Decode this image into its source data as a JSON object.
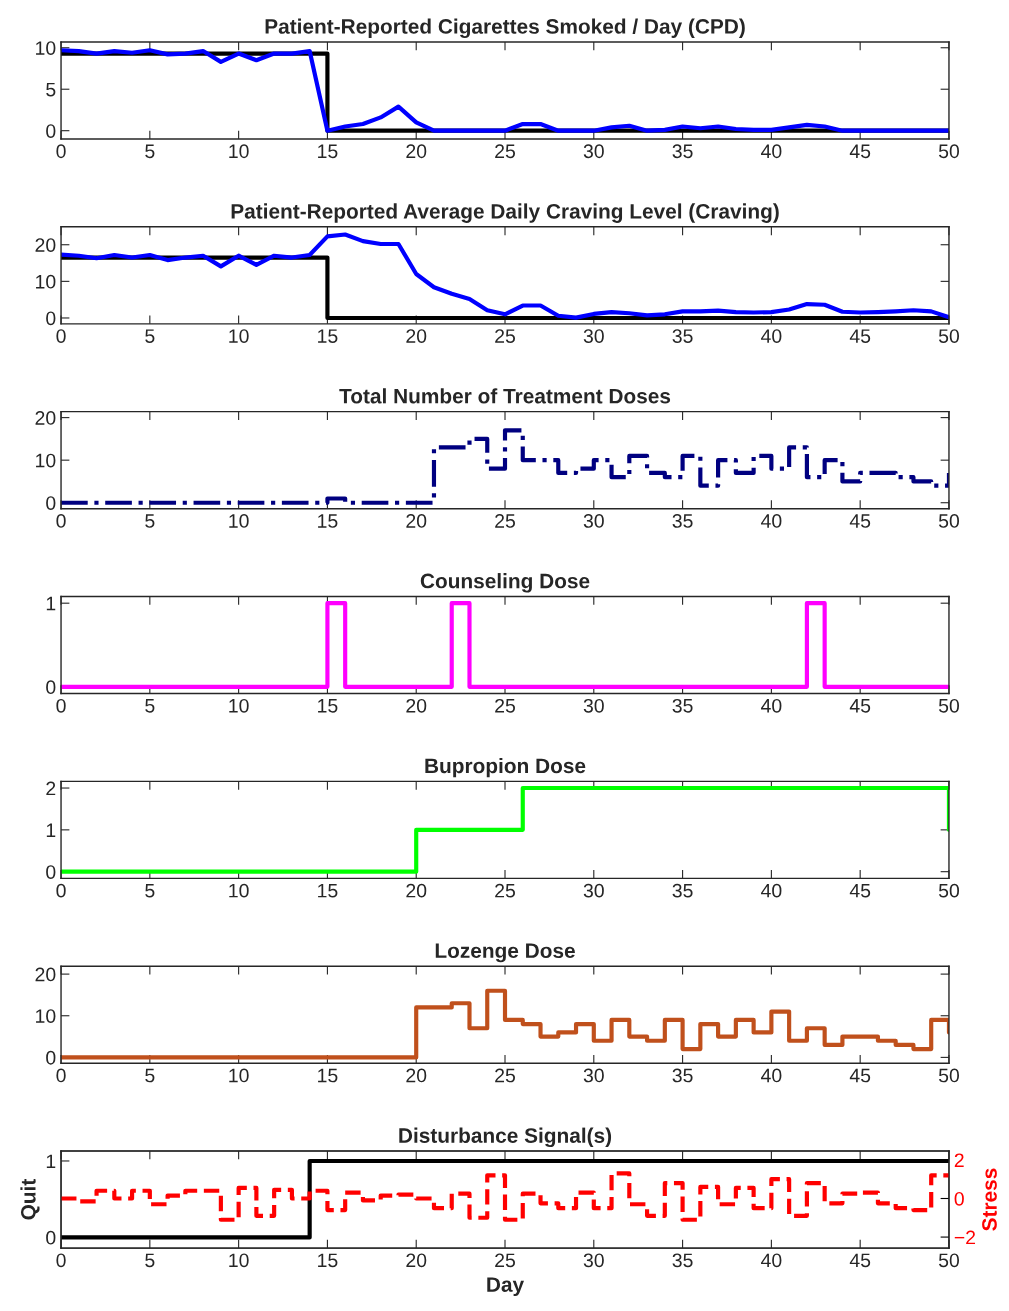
{
  "chart_data": [
    {
      "type": "line",
      "title": "Patient-Reported Cigarettes Smoked / Day (CPD)",
      "x": [
        0,
        1,
        2,
        3,
        4,
        5,
        6,
        7,
        8,
        9,
        10,
        11,
        12,
        13,
        14,
        15,
        16,
        17,
        18,
        19,
        20,
        21,
        22,
        23,
        24,
        25,
        26,
        27,
        28,
        29,
        30,
        31,
        32,
        33,
        34,
        35,
        36,
        37,
        38,
        39,
        40,
        41,
        42,
        43,
        44,
        45,
        46,
        47,
        48,
        49,
        50
      ],
      "xlim": [
        0,
        50
      ],
      "xticks": [
        0,
        5,
        10,
        15,
        20,
        25,
        30,
        35,
        40,
        45,
        50
      ],
      "ylim": [
        -1,
        10.7
      ],
      "yticks": [
        0,
        5,
        10
      ],
      "series": [
        {
          "type": "step",
          "color": "#000000",
          "x": [
            0,
            15,
            50
          ],
          "values": [
            9.3,
            0,
            0
          ]
        },
        {
          "color": "#0000ff",
          "values": [
            9.7,
            9.6,
            9.3,
            9.6,
            9.4,
            9.7,
            9.2,
            9.3,
            9.6,
            8.3,
            9.3,
            8.5,
            9.3,
            9.3,
            9.6,
            0,
            0.5,
            0.8,
            1.6,
            2.9,
            1.0,
            0,
            0,
            0,
            0,
            0,
            0.8,
            0.8,
            0,
            0,
            0,
            0.4,
            0.6,
            0,
            0.1,
            0.5,
            0.3,
            0.5,
            0.2,
            0.1,
            0.1,
            0.4,
            0.7,
            0.5,
            0,
            0,
            0,
            0,
            0,
            0,
            0
          ]
        }
      ]
    },
    {
      "type": "line",
      "title": "Patient-Reported Average Daily Craving Level (Craving)",
      "x": [
        0,
        1,
        2,
        3,
        4,
        5,
        6,
        7,
        8,
        9,
        10,
        11,
        12,
        13,
        14,
        15,
        16,
        17,
        18,
        19,
        20,
        21,
        22,
        23,
        24,
        25,
        26,
        27,
        28,
        29,
        30,
        31,
        32,
        33,
        34,
        35,
        36,
        37,
        38,
        39,
        40,
        41,
        42,
        43,
        44,
        45,
        46,
        47,
        48,
        49,
        50
      ],
      "xlim": [
        0,
        50
      ],
      "xticks": [
        0,
        5,
        10,
        15,
        20,
        25,
        30,
        35,
        40,
        45,
        50
      ],
      "ylim": [
        -1.6,
        24.9
      ],
      "yticks": [
        0,
        10,
        20
      ],
      "series": [
        {
          "type": "step",
          "color": "#000000",
          "x": [
            0,
            15,
            50
          ],
          "values": [
            16.5,
            0,
            0
          ]
        },
        {
          "color": "#0000ff",
          "values": [
            17.3,
            17,
            16.3,
            17.2,
            16.5,
            17.2,
            15.8,
            16.5,
            17,
            14.1,
            17,
            14.5,
            17,
            16.5,
            17.2,
            22.3,
            22.8,
            21,
            20.2,
            20.2,
            12,
            8.4,
            6.6,
            5.2,
            2.1,
            1,
            3.4,
            3.4,
            0.6,
            0.1,
            1.1,
            1.6,
            1.3,
            0.7,
            1,
            1.8,
            1.8,
            2,
            1.6,
            1.5,
            1.6,
            2.3,
            3.8,
            3.6,
            1.7,
            1.5,
            1.6,
            1.8,
            2.1,
            1.8,
            0.2
          ]
        }
      ]
    },
    {
      "type": "step",
      "title": "Total Number of Treatment Doses",
      "x": [
        0,
        1,
        2,
        3,
        4,
        5,
        6,
        7,
        8,
        9,
        10,
        11,
        12,
        13,
        14,
        15,
        16,
        17,
        18,
        19,
        20,
        21,
        22,
        23,
        24,
        25,
        26,
        27,
        28,
        29,
        30,
        31,
        32,
        33,
        34,
        35,
        36,
        37,
        38,
        39,
        40,
        41,
        42,
        43,
        44,
        45,
        46,
        47,
        48,
        49,
        50
      ],
      "xlim": [
        0,
        50
      ],
      "xticks": [
        0,
        5,
        10,
        15,
        20,
        25,
        30,
        35,
        40,
        45,
        50
      ],
      "ylim": [
        -1.4,
        21.4
      ],
      "yticks": [
        0,
        10,
        20
      ],
      "series": [
        {
          "color": "#000080",
          "line_style": "dashdot",
          "values": [
            0,
            0,
            0,
            0,
            0,
            0,
            0,
            0,
            0,
            0,
            0,
            0,
            0,
            0,
            0,
            1,
            0,
            0,
            0,
            0,
            0,
            13,
            13,
            15,
            8,
            17,
            10,
            10,
            7,
            8,
            10,
            6,
            11,
            7,
            6,
            11,
            4,
            10,
            7,
            11,
            8,
            13,
            6,
            10,
            5,
            7,
            7,
            6,
            5,
            4,
            7
          ]
        }
      ]
    },
    {
      "type": "step",
      "title": "Counseling Dose",
      "x": [
        0,
        1,
        2,
        3,
        4,
        5,
        6,
        7,
        8,
        9,
        10,
        11,
        12,
        13,
        14,
        15,
        16,
        17,
        18,
        19,
        20,
        21,
        22,
        23,
        24,
        25,
        26,
        27,
        28,
        29,
        30,
        31,
        32,
        33,
        34,
        35,
        36,
        37,
        38,
        39,
        40,
        41,
        42,
        43,
        44,
        45,
        46,
        47,
        48,
        49,
        50
      ],
      "xlim": [
        0,
        50
      ],
      "xticks": [
        0,
        5,
        10,
        15,
        20,
        25,
        30,
        35,
        40,
        45,
        50
      ],
      "ylim": [
        -0.08,
        1.08
      ],
      "yticks": [
        0,
        1
      ],
      "series": [
        {
          "color": "#ff00ff",
          "values": [
            0,
            0,
            0,
            0,
            0,
            0,
            0,
            0,
            0,
            0,
            0,
            0,
            0,
            0,
            0,
            1,
            0,
            0,
            0,
            0,
            0,
            0,
            1,
            0,
            0,
            0,
            0,
            0,
            0,
            0,
            0,
            0,
            0,
            0,
            0,
            0,
            0,
            0,
            0,
            0,
            0,
            0,
            1,
            0,
            0,
            0,
            0,
            0,
            0,
            0,
            0
          ]
        }
      ]
    },
    {
      "type": "step",
      "title": "Bupropion Dose",
      "x": [
        0,
        1,
        2,
        3,
        4,
        5,
        6,
        7,
        8,
        9,
        10,
        11,
        12,
        13,
        14,
        15,
        16,
        17,
        18,
        19,
        20,
        21,
        22,
        23,
        24,
        25,
        26,
        27,
        28,
        29,
        30,
        31,
        32,
        33,
        34,
        35,
        36,
        37,
        38,
        39,
        40,
        41,
        42,
        43,
        44,
        45,
        46,
        47,
        48,
        49,
        50
      ],
      "xlim": [
        0,
        50
      ],
      "xticks": [
        0,
        5,
        10,
        15,
        20,
        25,
        30,
        35,
        40,
        45,
        50
      ],
      "ylim": [
        -0.16,
        2.16
      ],
      "yticks": [
        0,
        1,
        2
      ],
      "series": [
        {
          "color": "#00ff00",
          "values": [
            0,
            0,
            0,
            0,
            0,
            0,
            0,
            0,
            0,
            0,
            0,
            0,
            0,
            0,
            0,
            0,
            0,
            0,
            0,
            0,
            1,
            1,
            1,
            1,
            1,
            1,
            2,
            2,
            2,
            2,
            2,
            2,
            2,
            2,
            2,
            2,
            2,
            2,
            2,
            2,
            2,
            2,
            2,
            2,
            2,
            2,
            2,
            2,
            2,
            2,
            1
          ]
        }
      ]
    },
    {
      "type": "step",
      "title": "Lozenge Dose",
      "x": [
        0,
        1,
        2,
        3,
        4,
        5,
        6,
        7,
        8,
        9,
        10,
        11,
        12,
        13,
        14,
        15,
        16,
        17,
        18,
        19,
        20,
        21,
        22,
        23,
        24,
        25,
        26,
        27,
        28,
        29,
        30,
        31,
        32,
        33,
        34,
        35,
        36,
        37,
        38,
        39,
        40,
        41,
        42,
        43,
        44,
        45,
        46,
        47,
        48,
        49,
        50
      ],
      "xlim": [
        0,
        50
      ],
      "xticks": [
        0,
        5,
        10,
        15,
        20,
        25,
        30,
        35,
        40,
        45,
        50
      ],
      "ylim": [
        -1.4,
        21.9
      ],
      "yticks": [
        0,
        10,
        20
      ],
      "series": [
        {
          "color": "#c0501c",
          "values": [
            0,
            0,
            0,
            0,
            0,
            0,
            0,
            0,
            0,
            0,
            0,
            0,
            0,
            0,
            0,
            0,
            0,
            0,
            0,
            0,
            12,
            12,
            13,
            7,
            16,
            9,
            8,
            5,
            6,
            8,
            4,
            9,
            5,
            4,
            9,
            2,
            8,
            5,
            9,
            6,
            11,
            4,
            7,
            3,
            5,
            5,
            4,
            3,
            2,
            9,
            6
          ]
        }
      ]
    },
    {
      "type": "step",
      "title": "Disturbance Signal(s)",
      "xlabel": "Day",
      "ylabel": "Quit",
      "y2label": "Stress",
      "x": [
        0,
        1,
        2,
        3,
        4,
        5,
        6,
        7,
        8,
        9,
        10,
        11,
        12,
        13,
        14,
        15,
        16,
        17,
        18,
        19,
        20,
        21,
        22,
        23,
        24,
        25,
        26,
        27,
        28,
        29,
        30,
        31,
        32,
        33,
        34,
        35,
        36,
        37,
        38,
        39,
        40,
        41,
        42,
        43,
        44,
        45,
        46,
        47,
        48,
        49,
        50
      ],
      "xlim": [
        0,
        50
      ],
      "xticks": [
        0,
        5,
        10,
        15,
        20,
        25,
        30,
        35,
        40,
        45,
        50
      ],
      "ylim": [
        -0.14,
        1.13
      ],
      "yticks": [
        0,
        1
      ],
      "y2lim": [
        -2.57,
        2.46
      ],
      "y2ticks": [
        {
          "value": -2,
          "label": "−2"
        },
        0,
        2
      ],
      "series": [
        {
          "color": "#000000",
          "values": [
            0,
            0,
            0,
            0,
            0,
            0,
            0,
            0,
            0,
            0,
            0,
            0,
            0,
            0,
            1,
            1,
            1,
            1,
            1,
            1,
            1,
            1,
            1,
            1,
            1,
            1,
            1,
            1,
            1,
            1,
            1,
            1,
            1,
            1,
            1,
            1,
            1,
            1,
            1,
            1,
            1,
            1,
            1,
            1,
            1,
            1,
            1,
            1,
            1,
            1,
            1
          ]
        },
        {
          "color": "#ff0000",
          "axis": "y2",
          "line_style": "dashed",
          "values": [
            0,
            -0.15,
            0.4,
            0,
            0.4,
            -0.3,
            0.15,
            0.4,
            0.4,
            -1.1,
            0.55,
            -0.9,
            0.45,
            0,
            0.4,
            -0.6,
            0.3,
            -0.1,
            0.15,
            0.2,
            0,
            -0.5,
            0.25,
            -1.0,
            1.2,
            -1.1,
            0.25,
            -0.25,
            -0.5,
            0.3,
            -0.5,
            1.3,
            -0.3,
            -0.9,
            0.8,
            -1.1,
            0.6,
            -0.3,
            0.55,
            -0.5,
            1.0,
            -0.9,
            0.8,
            -0.25,
            0.25,
            0.3,
            -0.25,
            -0.5,
            -0.6,
            1.2,
            1.2
          ]
        }
      ]
    }
  ]
}
